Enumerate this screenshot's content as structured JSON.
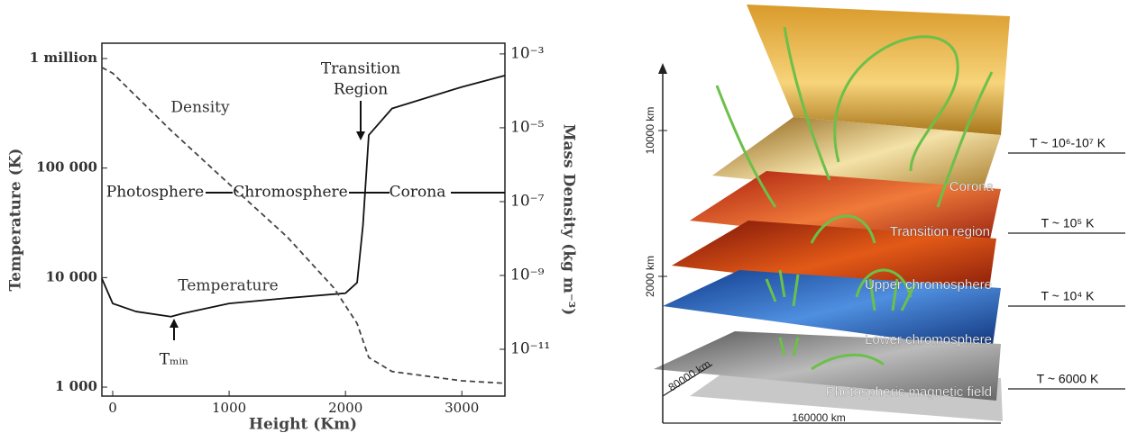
{
  "chart_data": {
    "type": "line",
    "xlabel": "Height (Km)",
    "ylabel": "Temperature (K)",
    "y2label": "Mass Density (kg m⁻³)",
    "xlim": [
      -93,
      3370
    ],
    "xticks": [
      0,
      1000,
      2000,
      3000
    ],
    "ylim": [
      828,
      1380000
    ],
    "log_y": true,
    "yticks": [
      {
        "value": 1000,
        "label": "1 000"
      },
      {
        "value": 10000,
        "label": "10 000"
      },
      {
        "value": 100000,
        "label": "100 000"
      },
      {
        "value": 1000000,
        "label": "1 million"
      }
    ],
    "y2lim": [
      5.4e-13,
      0.00195
    ],
    "log_y2": true,
    "y2ticks": [
      {
        "value": 0.001,
        "label": "10⁻³"
      },
      {
        "value": 1e-05,
        "label": "10⁻⁵"
      },
      {
        "value": 1e-07,
        "label": "10⁻⁷"
      },
      {
        "value": 1e-09,
        "label": "10⁻⁹"
      },
      {
        "value": 1e-11,
        "label": "10⁻¹¹"
      }
    ],
    "series": [
      {
        "name": "Temperature",
        "color": "#111111",
        "dash": false,
        "x": [
          -93,
          0,
          200,
          500,
          600,
          1000,
          1500,
          2000,
          2100,
          2150,
          2200,
          2400,
          3000,
          3370
        ],
        "values": [
          9800,
          5800,
          4900,
          4400,
          4700,
          5800,
          6500,
          7200,
          9000,
          30000,
          200000,
          350000,
          550000,
          700000
        ]
      },
      {
        "name": "Density",
        "color": "#444444",
        "dash": true,
        "axis": "y2",
        "x": [
          -93,
          0,
          500,
          1000,
          1500,
          1900,
          2100,
          2200,
          2400,
          3000,
          3370
        ],
        "values": [
          0.00043,
          0.0003,
          8.5e-06,
          3e-07,
          1.1e-08,
          4.6e-10,
          5e-11,
          6e-12,
          2.5e-12,
          1.4e-12,
          1.2e-12
        ]
      }
    ],
    "annotations": [
      "Transition",
      "Region",
      "Photosphere",
      "Chromosphere",
      "Corona",
      "Tₘᵢₙ"
    ]
  },
  "illustration": {
    "layers": [
      "Corona",
      "Transition region",
      "Upper chromosphere",
      "Lower chromosphere",
      "Photospheric magnetic field"
    ],
    "axis_labels": [
      "10000 km",
      "2000 km",
      "80000 km",
      "160000 km"
    ],
    "temperatures": [
      "T ~ 10⁶-10⁷ K",
      "T ~ 10⁵ K",
      "T ~ 10⁴ K",
      "T ~ 6000 K"
    ]
  }
}
